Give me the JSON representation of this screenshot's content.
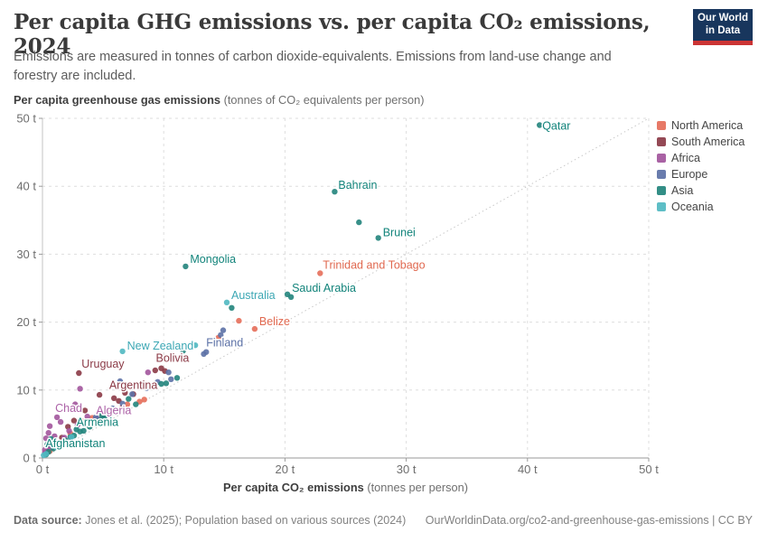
{
  "header": {
    "title": "Per capita GHG emissions vs. per capita CO₂ emissions, 2024",
    "subtitle": "Emissions are measured in tonnes of carbon dioxide-equivalents. Emissions from land-use change and forestry are included.",
    "logo": {
      "line1": "Our World",
      "line2": "in Data",
      "bg_color": "#18365D",
      "accent_color": "#CB3434"
    }
  },
  "footer": {
    "source_label": "Data source:",
    "source_text": " Jones et al. (2025); Population based on various sources (2024)",
    "link_text": "OurWorldinData.org/co2-and-greenhouse-gas-emissions | CC BY"
  },
  "chart_data": {
    "type": "scatter",
    "title": "Per capita GHG emissions vs. per capita CO₂ emissions, 2024",
    "xlabel_bold": "Per capita CO₂ emissions",
    "xlabel_normal": "(tonnes per person)",
    "ylabel_bold": "Per capita greenhouse gas emissions",
    "ylabel_normal": "(tonnes of CO₂ equivalents per person)",
    "xlim": [
      0,
      50
    ],
    "ylim": [
      0,
      50
    ],
    "x_ticks": [
      0,
      10,
      20,
      30,
      40,
      50
    ],
    "y_ticks": [
      0,
      10,
      20,
      30,
      40,
      50
    ],
    "tick_suffix": " t",
    "grid": "dashed",
    "identity_line": true,
    "legend_position": "right",
    "point_radius": 3.2,
    "series": [
      {
        "name": "North America",
        "color": "#E56E5A",
        "label_color": "#E0684F",
        "points": [
          {
            "x": 22.9,
            "y": 27.2,
            "label": "Trinidad and Tobago",
            "dx": 3,
            "dy": -5
          },
          {
            "x": 17.5,
            "y": 19.0,
            "label": "Belize",
            "dx": 5,
            "dy": -4
          },
          [
            16.2,
            20.2
          ],
          [
            14.5,
            17.7
          ],
          [
            8.0,
            8.3
          ],
          [
            8.4,
            8.6
          ],
          [
            7.0,
            7.9
          ],
          [
            5.6,
            6.9
          ],
          [
            4.1,
            5.9
          ],
          [
            3.3,
            5.4
          ],
          [
            2.3,
            3.6
          ],
          [
            1.4,
            2.2
          ],
          [
            0.6,
            1.0
          ],
          [
            6.6,
            7.5
          ],
          [
            5.0,
            6.3
          ],
          [
            0.9,
            1.5
          ]
        ]
      },
      {
        "name": "South America",
        "color": "#8B3A46",
        "label_color": "#8B3A46",
        "points": [
          {
            "x": 9.8,
            "y": 13.2,
            "label": "Bolivia",
            "dx": -6,
            "dy": -7
          },
          {
            "x": 3.0,
            "y": 12.5,
            "label": "Uruguay",
            "dx": 3,
            "dy": -6
          },
          {
            "x": 7.5,
            "y": 9.4,
            "label": "Argentina",
            "dx": 0,
            "dy": -6,
            "anchor": "middle"
          },
          [
            9.3,
            12.9
          ],
          [
            10.1,
            12.8
          ],
          [
            4.7,
            9.3
          ],
          [
            5.9,
            8.8
          ],
          [
            6.8,
            9.6
          ],
          [
            3.5,
            7.0
          ],
          [
            2.1,
            4.6
          ],
          [
            1.6,
            3.0
          ],
          [
            0.9,
            1.7
          ],
          [
            6.3,
            8.4
          ],
          [
            2.6,
            5.5
          ]
        ]
      },
      {
        "name": "Africa",
        "color": "#A2559C",
        "label_color": "#AC62A7",
        "points": [
          {
            "x": 4.5,
            "y": 5.8,
            "label": "Algeria",
            "dx": -1,
            "dy": -5
          },
          {
            "x": 1.2,
            "y": 6.0,
            "label": "Chad",
            "dx": -2,
            "dy": -6
          },
          [
            8.7,
            12.6
          ],
          [
            3.1,
            10.2
          ],
          [
            2.7,
            7.9
          ],
          [
            0.6,
            4.7
          ],
          [
            1.0,
            3.2
          ],
          [
            0.8,
            2.4
          ],
          [
            0.4,
            1.6
          ],
          [
            0.2,
            0.8
          ],
          [
            1.8,
            3.0
          ],
          [
            2.2,
            4.0
          ],
          [
            1.5,
            5.3
          ],
          [
            0.3,
            2.9
          ],
          [
            2.9,
            4.9
          ],
          [
            0.2,
            1.2
          ],
          [
            3.7,
            6.1
          ],
          [
            0.5,
            3.7
          ],
          [
            1.1,
            2.1
          ],
          [
            0.7,
            1.6
          ]
        ]
      },
      {
        "name": "Europe",
        "color": "#5C71A6",
        "label_color": "#5C71A6",
        "points": [
          {
            "x": 13.5,
            "y": 15.6,
            "label": "Finland",
            "dx": 0,
            "dy": -6
          },
          [
            14.9,
            18.8
          ],
          [
            14.7,
            18.1
          ],
          [
            13.3,
            15.3
          ],
          [
            10.4,
            12.6
          ],
          [
            10.6,
            11.6
          ],
          [
            8.6,
            10.3
          ],
          [
            6.4,
            11.3
          ],
          [
            7.4,
            9.4
          ],
          [
            6.6,
            8.0
          ],
          [
            5.8,
            7.3
          ],
          [
            5.2,
            6.6
          ],
          [
            4.8,
            6.9
          ],
          [
            4.4,
            6.0
          ],
          [
            3.9,
            5.2
          ],
          [
            9.5,
            11.2
          ]
        ]
      },
      {
        "name": "Asia",
        "color": "#22847C",
        "label_color": "#11837A",
        "points": [
          {
            "x": 41.0,
            "y": 49.0,
            "label": "Qatar",
            "dx": 3,
            "dy": 5
          },
          {
            "x": 24.1,
            "y": 39.2,
            "label": "Bahrain",
            "dx": 4,
            "dy": -3
          },
          {
            "x": 27.7,
            "y": 32.4,
            "label": "Brunei",
            "dx": 5,
            "dy": -2
          },
          {
            "x": 20.2,
            "y": 24.1,
            "label": "Saudi Arabia",
            "dx": 5,
            "dy": -3
          },
          {
            "x": 11.8,
            "y": 28.2,
            "label": "Mongolia",
            "dx": 5,
            "dy": -4
          },
          {
            "x": 2.8,
            "y": 4.2,
            "label": "Armenia",
            "dx": 0,
            "dy": -4
          },
          {
            "x": 0.4,
            "y": 2.0,
            "label": "Afghanistan",
            "dx": -2,
            "dy": 3
          },
          [
            26.1,
            34.7
          ],
          [
            20.5,
            23.7
          ],
          [
            15.6,
            22.1
          ],
          [
            11.6,
            15.8
          ],
          [
            10.7,
            16.2
          ],
          [
            11.1,
            11.8
          ],
          [
            9.8,
            10.9
          ],
          [
            10.2,
            11.0
          ],
          [
            7.7,
            7.9
          ],
          [
            7.1,
            8.7
          ],
          [
            6.2,
            7.0
          ],
          [
            5.6,
            6.5
          ],
          [
            5.1,
            5.9
          ],
          [
            4.7,
            5.5
          ],
          [
            4.3,
            5.0
          ],
          [
            3.9,
            4.6
          ],
          [
            3.4,
            4.0
          ],
          [
            2.3,
            3.1
          ],
          [
            1.9,
            2.6
          ],
          [
            1.3,
            1.9
          ],
          [
            0.9,
            1.4
          ],
          [
            0.5,
            0.9
          ],
          [
            2.6,
            3.3
          ],
          [
            4.0,
            5.3
          ],
          [
            4.9,
            6.2
          ],
          [
            0.7,
            2.8
          ],
          [
            1.6,
            2.2
          ],
          [
            3.1,
            3.9
          ],
          [
            0.3,
            0.5
          ]
        ]
      },
      {
        "name": "Oceania",
        "color": "#50B8C1",
        "label_color": "#3CA7B4",
        "points": [
          {
            "x": 15.2,
            "y": 22.9,
            "label": "Australia",
            "dx": 5,
            "dy": -4
          },
          {
            "x": 6.6,
            "y": 15.7,
            "label": "New Zealand",
            "dx": 5,
            "dy": -2
          },
          [
            12.6,
            16.6
          ],
          [
            2.4,
            3.1
          ],
          [
            1.1,
            1.6
          ],
          [
            0.3,
            0.6
          ],
          [
            0.8,
            1.9
          ],
          [
            0.1,
            0.4
          ]
        ]
      }
    ]
  }
}
